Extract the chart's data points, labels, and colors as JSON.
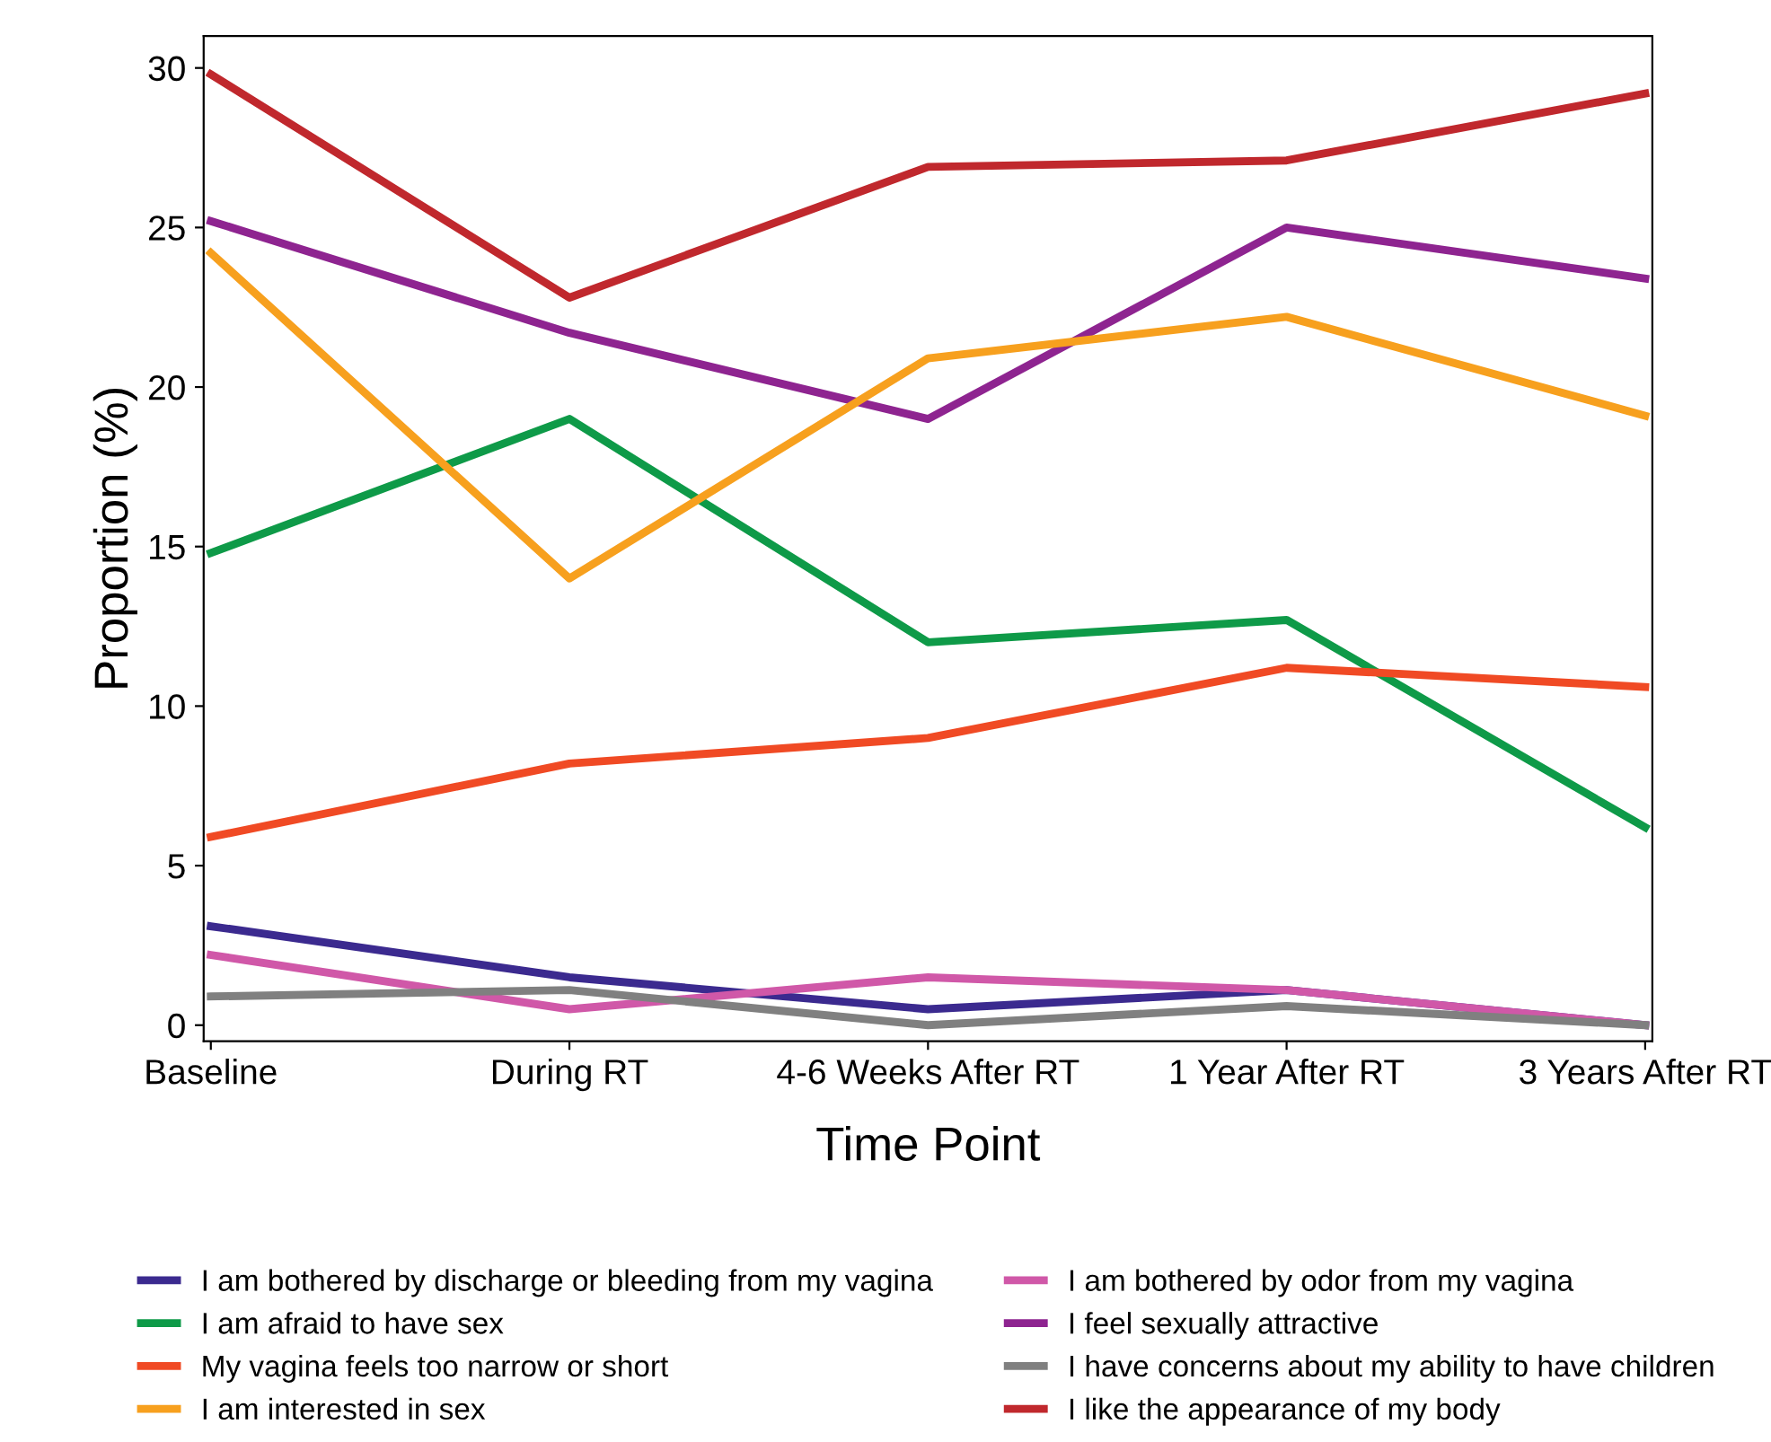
{
  "chart_data": {
    "type": "line",
    "xlabel": "Time Point",
    "ylabel": "Proportion (%)",
    "categories": [
      "Baseline",
      "During RT",
      "4-6 Weeks After RT",
      "1 Year After RT",
      "3 Years After RT"
    ],
    "ylim": [
      -0.5,
      31
    ],
    "yticks": [
      0,
      5,
      10,
      15,
      20,
      25,
      30
    ],
    "grid": false,
    "legend": "bottom",
    "marker": "none",
    "line_style": "solid",
    "series": [
      {
        "name": "I am bothered by discharge or bleeding from my vagina",
        "color": "#3b2a8f",
        "values": [
          3.1,
          1.5,
          0.5,
          1.1,
          0
        ]
      },
      {
        "name": "I am bothered by odor from my vagina",
        "color": "#d058a8",
        "values": [
          2.2,
          0.5,
          1.5,
          1.1,
          0
        ]
      },
      {
        "name": "I am afraid to have sex",
        "color": "#0e9a48",
        "values": [
          14.8,
          19.0,
          12.0,
          12.7,
          6.2
        ]
      },
      {
        "name": "I feel sexually attractive",
        "color": "#8e2490",
        "values": [
          25.2,
          21.7,
          19.0,
          25.0,
          23.4
        ]
      },
      {
        "name": "My vagina feels too narrow or short",
        "color": "#f04a24",
        "values": [
          5.9,
          8.2,
          9.0,
          11.2,
          10.6
        ]
      },
      {
        "name": "I have concerns about my ability to have children",
        "color": "#808080",
        "values": [
          0.9,
          1.1,
          0,
          0.6,
          0
        ]
      },
      {
        "name": "I am interested in sex",
        "color": "#f7a01e",
        "values": [
          24.2,
          14.0,
          20.9,
          22.2,
          19.1
        ]
      },
      {
        "name": "I like the appearance of my body",
        "color": "#c0282d",
        "values": [
          29.8,
          22.8,
          26.9,
          27.1,
          29.2
        ]
      }
    ]
  }
}
